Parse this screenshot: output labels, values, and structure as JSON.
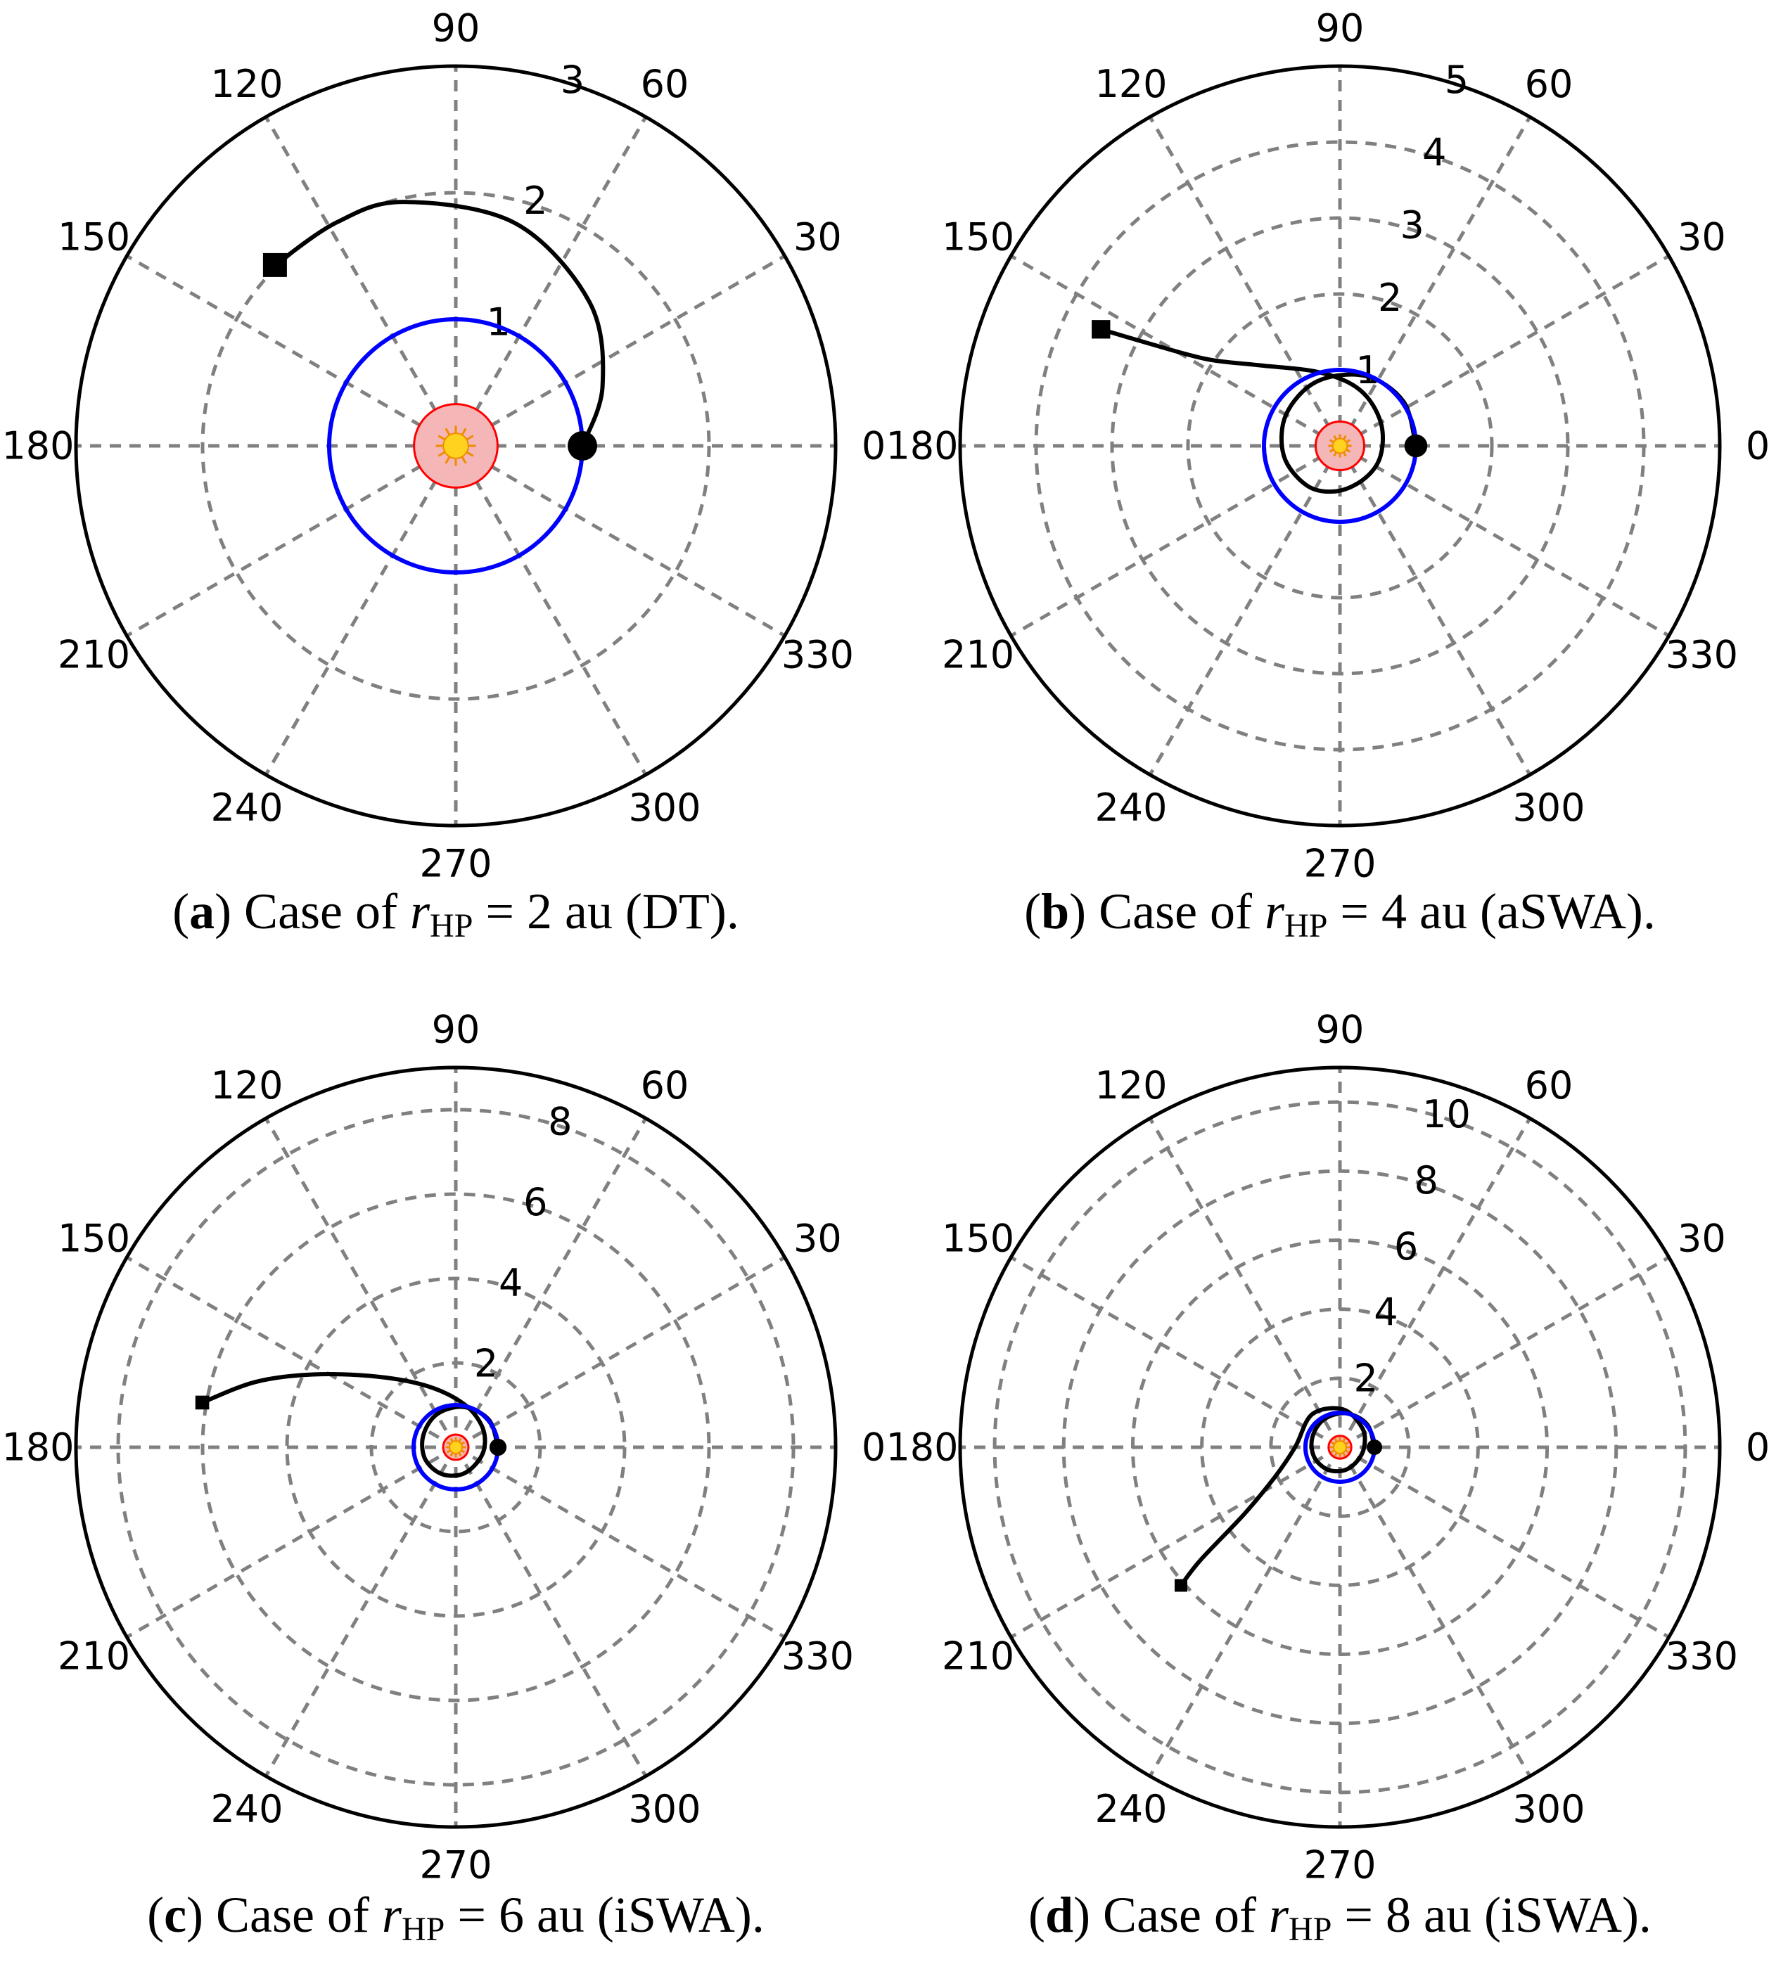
{
  "chart_data": [
    {
      "type": "polar",
      "panel": "a",
      "caption": {
        "label": "a",
        "pre": "Case of ",
        "var": "r",
        "sub": "HP",
        "post": " = 2 au (DT)."
      },
      "r_max": 3,
      "r_ticks": [
        1,
        2,
        3
      ],
      "angle_ticks": [
        0,
        30,
        60,
        90,
        120,
        150,
        180,
        210,
        240,
        270,
        300,
        330
      ],
      "series": [
        {
          "name": "trajectory",
          "color": "#000000",
          "points": [
            [
              1.0,
              0
            ],
            [
              1.25,
              22
            ],
            [
              1.55,
              47
            ],
            [
              1.82,
              75
            ],
            [
              1.97,
              102
            ],
            [
              2.0,
              118
            ],
            [
              2.02,
              135
            ]
          ]
        },
        {
          "name": "orbit",
          "color": "#0000ff",
          "circle_radius": 1.0
        },
        {
          "name": "inner_region",
          "color": "#ff0000",
          "circle_radius": 0.33
        }
      ],
      "start_marker": {
        "shape": "circle",
        "r": 1.0,
        "theta": 0
      },
      "end_marker": {
        "shape": "square",
        "r": 2.02,
        "theta": 135
      }
    },
    {
      "type": "polar",
      "panel": "b",
      "caption": {
        "label": "b",
        "pre": "Case of ",
        "var": "r",
        "sub": "HP",
        "post": " = 4 au (aSWA)."
      },
      "r_max": 5,
      "r_ticks": [
        1,
        2,
        3,
        4,
        5
      ],
      "angle_ticks": [
        0,
        30,
        60,
        90,
        120,
        150,
        180,
        210,
        240,
        270,
        300,
        330
      ],
      "series": [
        {
          "name": "trajectory",
          "color": "#000000",
          "points": [
            [
              1.0,
              0
            ],
            [
              1.02,
              35
            ],
            [
              0.98,
              70
            ],
            [
              0.9,
              110
            ],
            [
              0.82,
              150
            ],
            [
              0.75,
              190
            ],
            [
              0.68,
              230
            ],
            [
              0.6,
              265
            ],
            [
              0.54,
              305
            ],
            [
              0.55,
              345
            ],
            [
              0.62,
              30
            ],
            [
              0.78,
              70
            ],
            [
              1.0,
              105
            ],
            [
              1.5,
              135
            ],
            [
              2.1,
              147
            ],
            [
              2.9,
              152
            ],
            [
              3.5,
              154
            ]
          ]
        },
        {
          "name": "orbit",
          "color": "#0000ff",
          "circle_radius": 1.0
        },
        {
          "name": "inner_region",
          "color": "#ff0000",
          "circle_radius": 0.32
        }
      ],
      "start_marker": {
        "shape": "circle",
        "r": 1.0,
        "theta": 0
      },
      "end_marker": {
        "shape": "square",
        "r": 3.5,
        "theta": 154
      }
    },
    {
      "type": "polar",
      "panel": "c",
      "caption": {
        "label": "c",
        "pre": "Case of ",
        "var": "r",
        "sub": "HP",
        "post": " = 6 au (iSWA)."
      },
      "r_max": 9,
      "r_ticks": [
        2,
        4,
        6,
        8
      ],
      "angle_ticks": [
        0,
        30,
        60,
        90,
        120,
        150,
        180,
        210,
        240,
        270,
        300,
        330
      ],
      "series": [
        {
          "name": "trajectory",
          "color": "#000000",
          "points": [
            [
              1.0,
              0
            ],
            [
              1.02,
              40
            ],
            [
              0.97,
              80
            ],
            [
              0.9,
              120
            ],
            [
              0.82,
              160
            ],
            [
              0.78,
              200
            ],
            [
              0.72,
              240
            ],
            [
              0.66,
              280
            ],
            [
              0.62,
              320
            ],
            [
              0.68,
              0
            ],
            [
              0.8,
              40
            ],
            [
              1.05,
              80
            ],
            [
              1.6,
              115
            ],
            [
              2.5,
              138
            ],
            [
              3.8,
              153
            ],
            [
              5.0,
              162
            ],
            [
              6.1,
              170
            ]
          ]
        },
        {
          "name": "orbit",
          "color": "#0000ff",
          "circle_radius": 1.0
        },
        {
          "name": "inner_region",
          "color": "#ff0000",
          "circle_radius": 0.3
        }
      ],
      "start_marker": {
        "shape": "circle",
        "r": 1.0,
        "theta": 0
      },
      "end_marker": {
        "shape": "square",
        "r": 6.1,
        "theta": 170
      }
    },
    {
      "type": "polar",
      "panel": "d",
      "caption": {
        "label": "d",
        "pre": "Case of ",
        "var": "r",
        "sub": "HP",
        "post": " = 8 au (iSWA)."
      },
      "r_max": 11,
      "r_ticks": [
        2,
        4,
        6,
        8,
        10
      ],
      "angle_ticks": [
        0,
        30,
        60,
        90,
        120,
        150,
        180,
        210,
        240,
        270,
        300,
        330
      ],
      "series": [
        {
          "name": "trajectory",
          "color": "#000000",
          "points": [
            [
              1.0,
              0
            ],
            [
              1.03,
              40
            ],
            [
              1.0,
              80
            ],
            [
              0.93,
              120
            ],
            [
              0.85,
              160
            ],
            [
              0.8,
              200
            ],
            [
              0.74,
              240
            ],
            [
              0.68,
              280
            ],
            [
              0.64,
              320
            ],
            [
              0.7,
              0
            ],
            [
              0.85,
              40
            ],
            [
              1.1,
              85
            ],
            [
              1.25,
              130
            ],
            [
              1.3,
              180
            ],
            [
              2.1,
              205
            ],
            [
              3.4,
              215
            ],
            [
              5.2,
              219
            ],
            [
              6.1,
              221
            ]
          ]
        },
        {
          "name": "orbit",
          "color": "#0000ff",
          "circle_radius": 1.0
        },
        {
          "name": "inner_region",
          "color": "#ff0000",
          "circle_radius": 0.33
        }
      ],
      "start_marker": {
        "shape": "circle",
        "r": 1.0,
        "theta": 0
      },
      "end_marker": {
        "shape": "square",
        "r": 6.1,
        "theta": 221
      }
    }
  ]
}
